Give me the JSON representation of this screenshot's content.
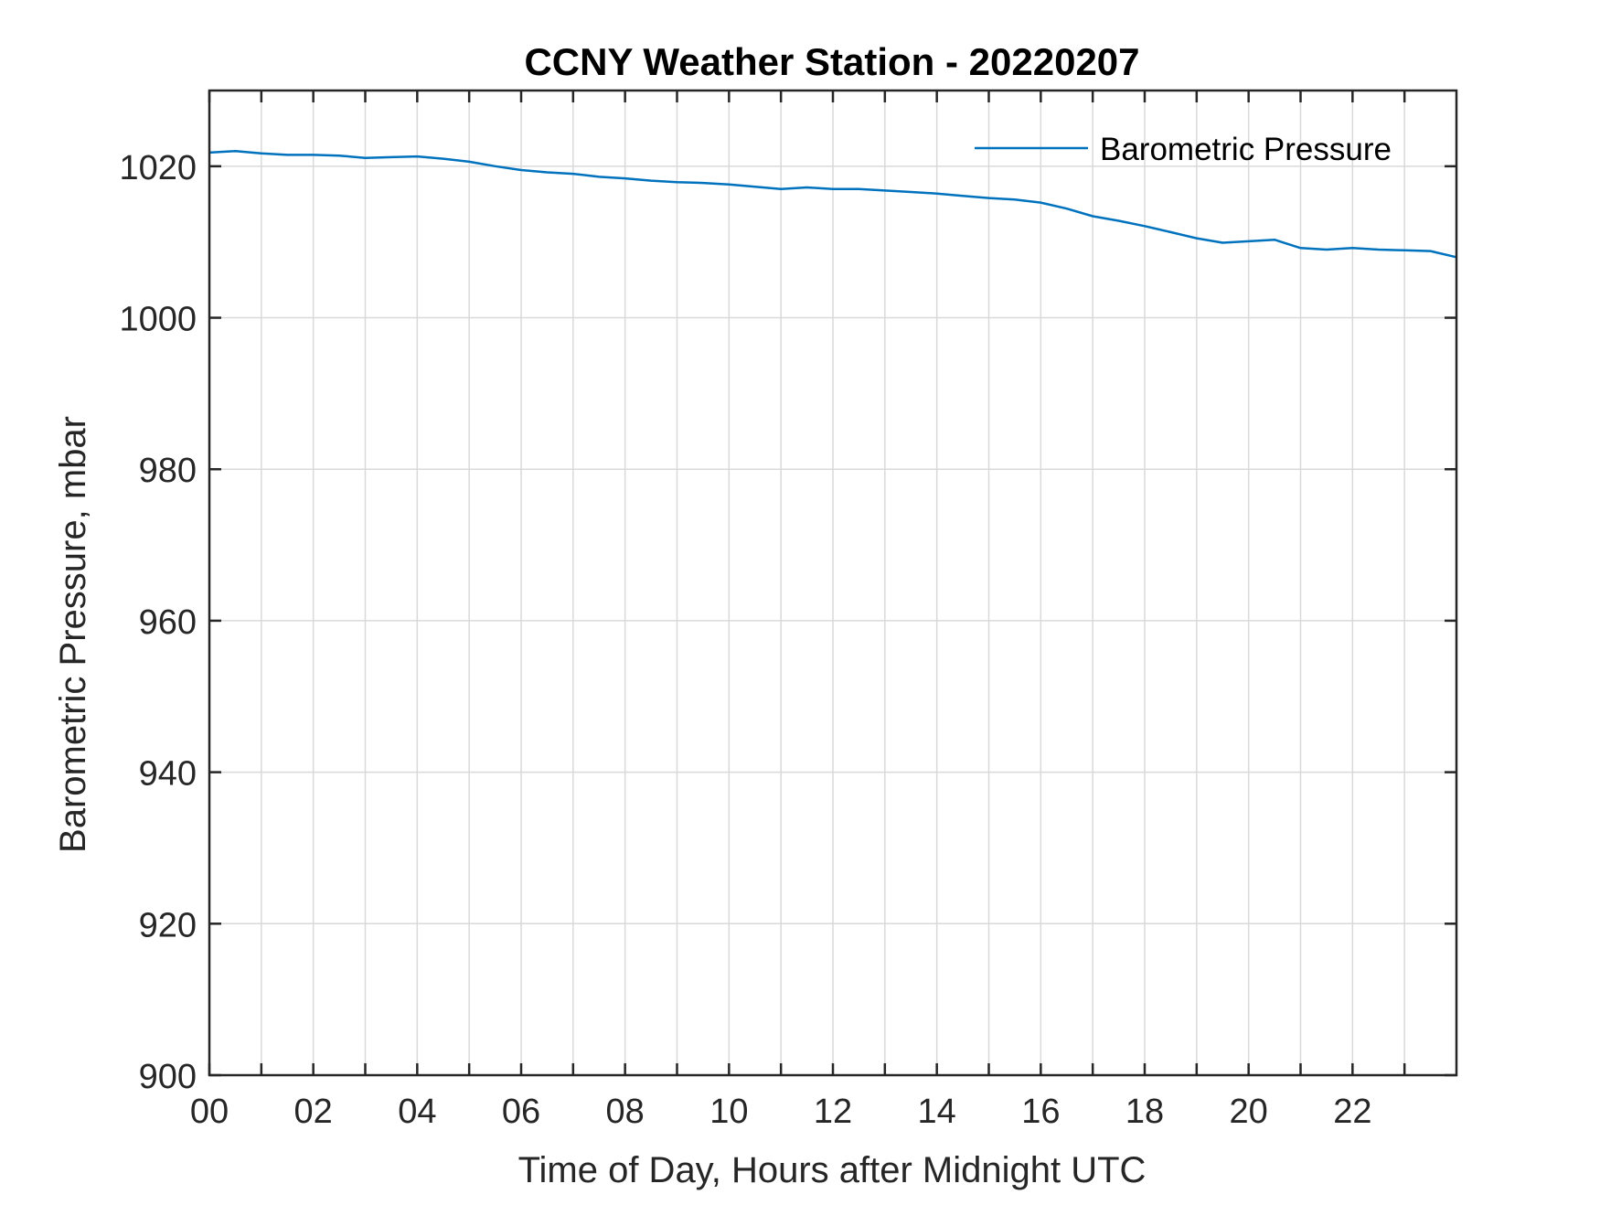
{
  "chart_data": {
    "type": "line",
    "title": "CCNY Weather Station - 20220207",
    "xlabel": "Time of Day, Hours after Midnight UTC",
    "ylabel": "Barometric Pressure, mbar",
    "xlim": [
      0,
      24
    ],
    "ylim": [
      900,
      1030
    ],
    "x_ticks": [
      0,
      2,
      4,
      6,
      8,
      10,
      12,
      14,
      16,
      18,
      20,
      22
    ],
    "x_tick_labels": [
      "00",
      "02",
      "04",
      "06",
      "08",
      "10",
      "12",
      "14",
      "16",
      "18",
      "20",
      "22"
    ],
    "x_gridlines": [
      0,
      1,
      2,
      3,
      4,
      5,
      6,
      7,
      8,
      9,
      10,
      11,
      12,
      13,
      14,
      15,
      16,
      17,
      18,
      19,
      20,
      21,
      22,
      23
    ],
    "y_ticks": [
      900,
      920,
      940,
      960,
      980,
      1000,
      1020
    ],
    "y_tick_labels": [
      "900",
      "920",
      "940",
      "960",
      "980",
      "1000",
      "1020"
    ],
    "grid": true,
    "legend_position": "top-right",
    "colors": {
      "series": "#0072BD",
      "grid": "#d9d9d9",
      "axes": "#262626"
    },
    "series": [
      {
        "name": "Barometric Pressure",
        "x": [
          0,
          0.5,
          1,
          1.5,
          2,
          2.5,
          3,
          3.5,
          4,
          4.5,
          5,
          5.5,
          6,
          6.5,
          7,
          7.5,
          8,
          8.5,
          9,
          9.5,
          10,
          10.5,
          11,
          11.5,
          12,
          12.5,
          13,
          13.5,
          14,
          14.5,
          15,
          15.5,
          16,
          16.5,
          17,
          17.5,
          18,
          18.5,
          19,
          19.5,
          20,
          20.5,
          21,
          21.5,
          22,
          22.5,
          23,
          23.5,
          24
        ],
        "y": [
          1021.8,
          1022.0,
          1021.7,
          1021.5,
          1021.5,
          1021.4,
          1021.1,
          1021.2,
          1021.3,
          1021.0,
          1020.6,
          1020.0,
          1019.5,
          1019.2,
          1019.0,
          1018.6,
          1018.4,
          1018.1,
          1017.9,
          1017.8,
          1017.6,
          1017.3,
          1017.0,
          1017.2,
          1017.0,
          1017.0,
          1016.8,
          1016.6,
          1016.4,
          1016.1,
          1015.8,
          1015.6,
          1015.2,
          1014.4,
          1013.4,
          1012.8,
          1012.1,
          1011.3,
          1010.5,
          1009.9,
          1010.1,
          1010.3,
          1009.2,
          1009.0,
          1009.2,
          1009.0,
          1008.9,
          1008.8,
          1008.0
        ]
      }
    ]
  }
}
